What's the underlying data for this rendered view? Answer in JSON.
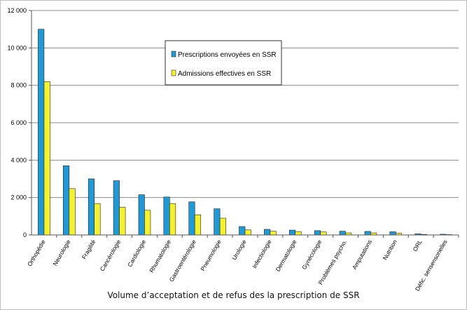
{
  "caption": "Volume d’acceptation et de refus des la prescription de SSR",
  "colors": {
    "series1": "#1f9ad6",
    "series2": "#f6f22a",
    "grid": "#8c8c8c",
    "frame": "#bdbdbd"
  },
  "chart_data": {
    "type": "bar",
    "categories": [
      "Orthopédie",
      "Neurologie",
      "Fragilité",
      "Cancérologie",
      "Cardiologie",
      "Rhumatologie",
      "Gastroentérologie",
      "Pneumologie",
      "Urologie",
      "Infectiologie",
      "Dermatologie",
      "Gynécologie",
      "Problèmes psycho.",
      "Amputations",
      "Nutrition",
      "ORL",
      "Défic. sensensorielles"
    ],
    "series": [
      {
        "name": "Prescriptions envoyées en SSR",
        "values": [
          11000,
          3700,
          3000,
          2900,
          2150,
          2030,
          1770,
          1400,
          450,
          300,
          260,
          230,
          200,
          190,
          170,
          60,
          40
        ]
      },
      {
        "name": "Admissions effectives en SSR",
        "values": [
          8200,
          2480,
          1680,
          1480,
          1320,
          1680,
          1080,
          900,
          270,
          200,
          180,
          160,
          110,
          110,
          90,
          30,
          20
        ]
      }
    ],
    "yticks": [
      "0",
      "2 000",
      "4 000",
      "6 000",
      "8 000",
      "10 000",
      "12 000"
    ],
    "ylim": [
      0,
      12000
    ],
    "grid": true,
    "legend_position": "top-center"
  }
}
